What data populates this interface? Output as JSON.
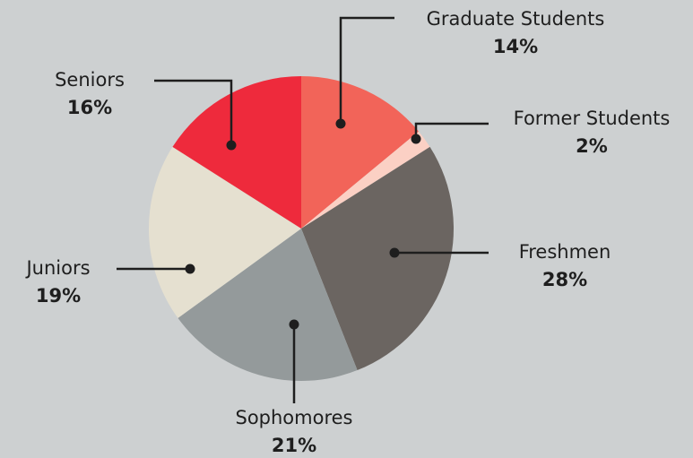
{
  "chart_data": {
    "type": "pie",
    "categories": [
      "Graduate Students",
      "Former Students",
      "Freshmen",
      "Sophomores",
      "Juniors",
      "Seniors"
    ],
    "values": [
      14,
      2,
      28,
      21,
      19,
      16
    ],
    "value_labels": [
      "14%",
      "2%",
      "28%",
      "21%",
      "19%",
      "16%"
    ],
    "colors": [
      "#f26459",
      "#fbd0c4",
      "#6b6561",
      "#949a9b",
      "#e5e0d0",
      "#ee2a3c"
    ]
  }
}
